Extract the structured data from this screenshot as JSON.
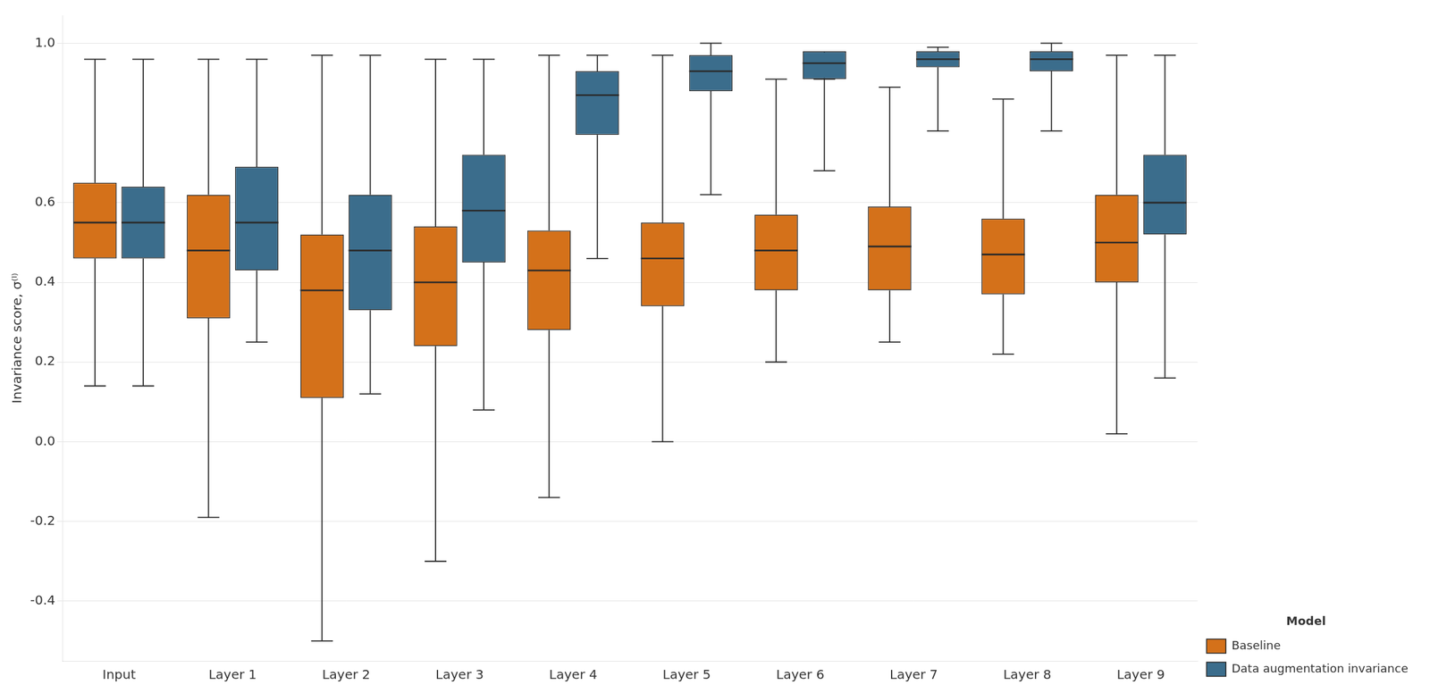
{
  "chart_data": {
    "type": "box",
    "categories": [
      "Input",
      "Layer 1",
      "Layer 2",
      "Layer 3",
      "Layer 4",
      "Layer 5",
      "Layer 6",
      "Layer 7",
      "Layer 8",
      "Layer 9"
    ],
    "series": [
      {
        "name": "Baseline",
        "color": "#d4711a",
        "whislo": [
          0.14,
          -0.19,
          -0.5,
          -0.3,
          -0.14,
          0.0,
          0.2,
          0.25,
          0.22,
          0.02
        ],
        "q1": [
          0.46,
          0.31,
          0.11,
          0.24,
          0.28,
          0.34,
          0.38,
          0.38,
          0.37,
          0.4
        ],
        "med": [
          0.55,
          0.48,
          0.38,
          0.4,
          0.43,
          0.46,
          0.48,
          0.49,
          0.47,
          0.5
        ],
        "q3": [
          0.65,
          0.62,
          0.52,
          0.54,
          0.53,
          0.55,
          0.57,
          0.59,
          0.56,
          0.62
        ],
        "whishi": [
          0.96,
          0.96,
          0.97,
          0.96,
          0.97,
          0.97,
          0.91,
          0.89,
          0.86,
          0.97
        ]
      },
      {
        "name": "Data augmentation invariance",
        "color": "#3b6d8c",
        "whislo": [
          0.14,
          0.25,
          0.12,
          0.08,
          0.46,
          0.62,
          0.68,
          0.78,
          0.78,
          0.16
        ],
        "q1": [
          0.46,
          0.43,
          0.33,
          0.45,
          0.77,
          0.88,
          0.91,
          0.94,
          0.93,
          0.52
        ],
        "med": [
          0.55,
          0.55,
          0.48,
          0.58,
          0.87,
          0.93,
          0.95,
          0.96,
          0.96,
          0.6
        ],
        "q3": [
          0.64,
          0.69,
          0.62,
          0.72,
          0.93,
          0.97,
          0.98,
          0.98,
          0.98,
          0.72
        ],
        "whishi": [
          0.96,
          0.96,
          0.97,
          0.96,
          0.97,
          1.0,
          0.91,
          0.99,
          1.0,
          0.97
        ]
      }
    ],
    "y_label": "Invariance score, σ⁽ˡ⁾",
    "ylim": [
      -0.55,
      1.07
    ],
    "yticks": [
      -0.4,
      -0.2,
      {
        "value": 0.0,
        "label": "0.0"
      },
      0.2,
      0.4,
      0.6,
      {
        "value": 1.0,
        "label": "1.0"
      }
    ],
    "grid": "y",
    "legend": "lower right",
    "legend_title": "Model"
  }
}
